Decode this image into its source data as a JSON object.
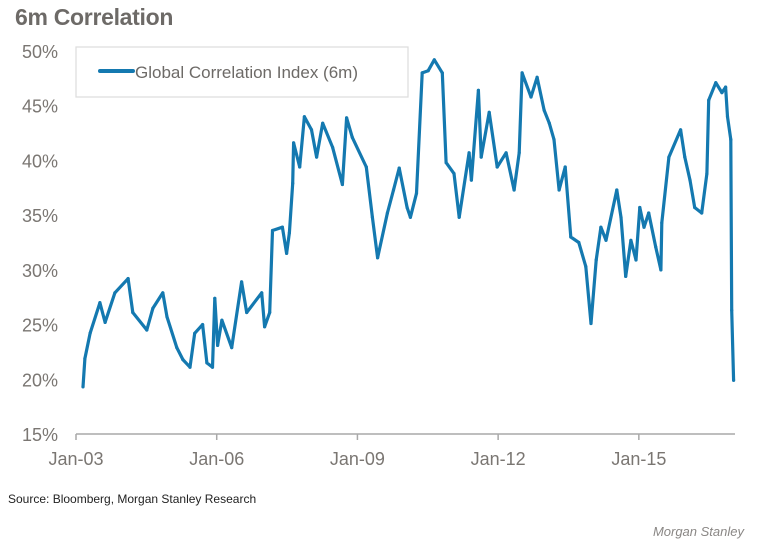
{
  "chart_data": {
    "type": "line",
    "title": "6m Correlation",
    "xlabel": "",
    "ylabel": "",
    "ylim": [
      15,
      50
    ],
    "y_ticks": [
      "15%",
      "20%",
      "25%",
      "30%",
      "35%",
      "40%",
      "45%",
      "50%"
    ],
    "y_tick_values": [
      15,
      20,
      25,
      30,
      35,
      40,
      45,
      50
    ],
    "xlim": [
      2003.0,
      2017.05
    ],
    "x_ticks": [
      "Jan-03",
      "Jan-06",
      "Jan-09",
      "Jan-12",
      "Jan-15"
    ],
    "x_tick_values": [
      2003,
      2006,
      2009,
      2012,
      2015
    ],
    "grid": false,
    "legend": "top-left",
    "series": [
      {
        "name": "Global Correlation Index (6m)",
        "color": "#1479b0",
        "points": [
          [
            2003.15,
            19.3
          ],
          [
            2003.19,
            21.9
          ],
          [
            2003.3,
            24.2
          ],
          [
            2003.51,
            27.0
          ],
          [
            2003.62,
            25.2
          ],
          [
            2003.83,
            27.9
          ],
          [
            2004.11,
            29.2
          ],
          [
            2004.21,
            26.1
          ],
          [
            2004.51,
            24.5
          ],
          [
            2004.64,
            26.5
          ],
          [
            2004.85,
            27.9
          ],
          [
            2004.94,
            25.7
          ],
          [
            2005.15,
            22.9
          ],
          [
            2005.28,
            21.8
          ],
          [
            2005.43,
            21.1
          ],
          [
            2005.53,
            24.2
          ],
          [
            2005.7,
            25.0
          ],
          [
            2005.79,
            21.5
          ],
          [
            2005.91,
            21.1
          ],
          [
            2005.96,
            27.4
          ],
          [
            2006.02,
            23.1
          ],
          [
            2006.11,
            25.4
          ],
          [
            2006.32,
            22.9
          ],
          [
            2006.53,
            28.9
          ],
          [
            2006.64,
            26.1
          ],
          [
            2006.96,
            27.9
          ],
          [
            2007.02,
            24.8
          ],
          [
            2007.13,
            26.1
          ],
          [
            2007.19,
            33.6
          ],
          [
            2007.4,
            33.9
          ],
          [
            2007.49,
            31.5
          ],
          [
            2007.55,
            33.4
          ],
          [
            2007.62,
            37.9
          ],
          [
            2007.64,
            41.6
          ],
          [
            2007.77,
            39.4
          ],
          [
            2007.87,
            44.0
          ],
          [
            2008.02,
            42.8
          ],
          [
            2008.13,
            40.3
          ],
          [
            2008.26,
            43.4
          ],
          [
            2008.47,
            41.2
          ],
          [
            2008.68,
            37.8
          ],
          [
            2008.77,
            43.9
          ],
          [
            2008.89,
            42.1
          ],
          [
            2009.19,
            39.4
          ],
          [
            2009.32,
            34.8
          ],
          [
            2009.43,
            31.1
          ],
          [
            2009.64,
            35.2
          ],
          [
            2009.77,
            37.3
          ],
          [
            2009.89,
            39.3
          ],
          [
            2010.06,
            35.7
          ],
          [
            2010.13,
            34.8
          ],
          [
            2010.26,
            37.0
          ],
          [
            2010.38,
            48.0
          ],
          [
            2010.51,
            48.2
          ],
          [
            2010.64,
            49.2
          ],
          [
            2010.81,
            48.0
          ],
          [
            2010.89,
            39.8
          ],
          [
            2011.06,
            38.8
          ],
          [
            2011.17,
            34.8
          ],
          [
            2011.38,
            40.7
          ],
          [
            2011.43,
            38.2
          ],
          [
            2011.58,
            46.4
          ],
          [
            2011.64,
            40.3
          ],
          [
            2011.81,
            44.4
          ],
          [
            2011.98,
            39.4
          ],
          [
            2012.17,
            40.7
          ],
          [
            2012.34,
            37.3
          ],
          [
            2012.45,
            40.7
          ],
          [
            2012.51,
            48.0
          ],
          [
            2012.7,
            45.8
          ],
          [
            2012.83,
            47.6
          ],
          [
            2012.98,
            44.6
          ],
          [
            2013.09,
            43.4
          ],
          [
            2013.19,
            41.9
          ],
          [
            2013.3,
            37.3
          ],
          [
            2013.43,
            39.4
          ],
          [
            2013.55,
            33.0
          ],
          [
            2013.72,
            32.5
          ],
          [
            2013.87,
            30.3
          ],
          [
            2013.98,
            25.1
          ],
          [
            2014.09,
            30.9
          ],
          [
            2014.19,
            33.9
          ],
          [
            2014.3,
            32.7
          ],
          [
            2014.53,
            37.3
          ],
          [
            2014.62,
            34.8
          ],
          [
            2014.72,
            29.4
          ],
          [
            2014.83,
            32.7
          ],
          [
            2014.94,
            30.9
          ],
          [
            2015.02,
            35.7
          ],
          [
            2015.11,
            33.9
          ],
          [
            2015.21,
            35.2
          ],
          [
            2015.36,
            32.1
          ],
          [
            2015.47,
            30.0
          ],
          [
            2015.49,
            34.3
          ],
          [
            2015.64,
            40.3
          ],
          [
            2015.89,
            42.8
          ],
          [
            2015.98,
            40.3
          ],
          [
            2016.09,
            38.2
          ],
          [
            2016.19,
            35.7
          ],
          [
            2016.34,
            35.2
          ],
          [
            2016.45,
            38.8
          ],
          [
            2016.49,
            45.5
          ],
          [
            2016.64,
            47.1
          ],
          [
            2016.77,
            46.2
          ],
          [
            2016.85,
            46.7
          ],
          [
            2016.89,
            44.0
          ],
          [
            2016.96,
            41.9
          ],
          [
            2016.98,
            26.3
          ],
          [
            2017.02,
            19.9
          ]
        ]
      }
    ]
  },
  "footer": {
    "source": "Source: Bloomberg, Morgan Stanley Research",
    "brand": "Morgan Stanley"
  }
}
